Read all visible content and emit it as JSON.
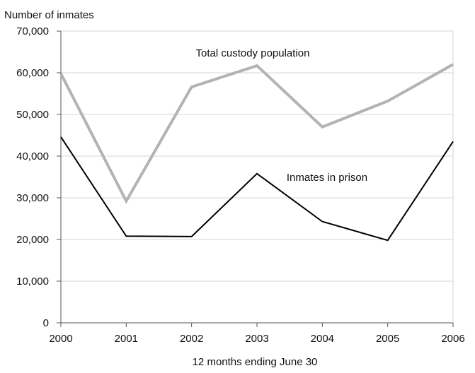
{
  "chart_data": {
    "type": "line",
    "title": "",
    "ylabel": "Number of inmates",
    "xlabel": "12 months ending June 30",
    "x": [
      "2000",
      "2001",
      "2002",
      "2003",
      "2004",
      "2005",
      "2006"
    ],
    "yticks": [
      "0",
      "10,000",
      "20,000",
      "30,000",
      "40,000",
      "50,000",
      "60,000",
      "70,000"
    ],
    "ylim": [
      0,
      70000
    ],
    "grid": true,
    "legend": "none",
    "series": [
      {
        "name": "Total custody population",
        "values": [
          59800,
          29200,
          56600,
          61700,
          47000,
          53200,
          62000
        ],
        "color": "#b3b3b3"
      },
      {
        "name": "Inmates in prison",
        "values": [
          44600,
          20800,
          20700,
          35800,
          24300,
          19800,
          43500
        ],
        "color": "#000000"
      }
    ]
  }
}
